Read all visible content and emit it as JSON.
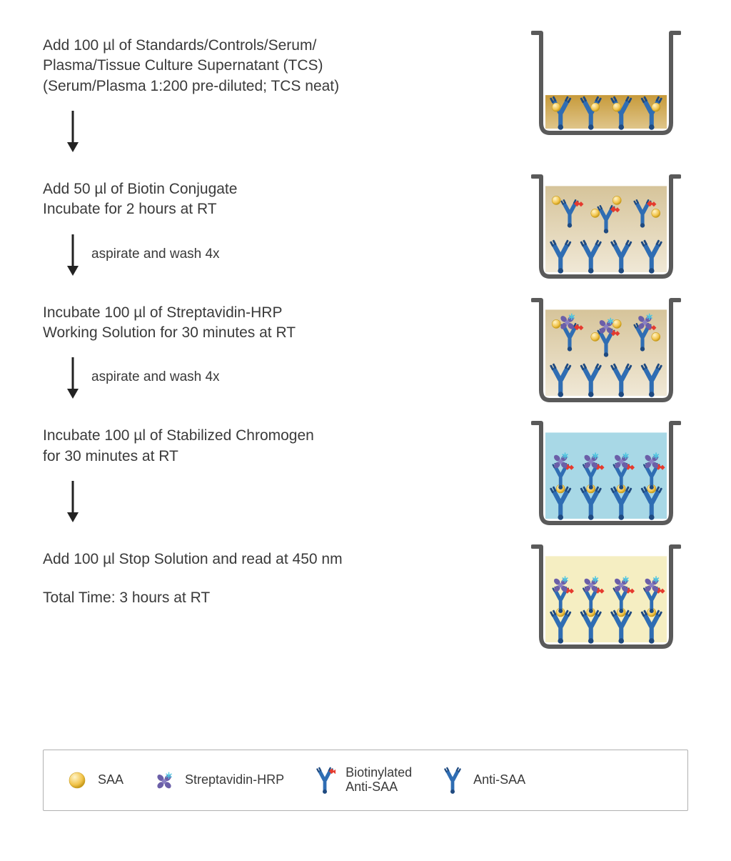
{
  "colors": {
    "text": "#3a3a3a",
    "arrow": "#222222",
    "well_border": "#5a5a5a",
    "saa_fill": "#f2c44b",
    "saa_stroke": "#c79a1a",
    "antibody_blue": "#2f6db3",
    "antibody_blue_dark": "#1f4a80",
    "biotin_red": "#e53a2e",
    "strep_purple": "#6b5fa8",
    "strep_cyan": "#4fc6e0",
    "legend_border": "#b0b0b0"
  },
  "steps": [
    {
      "text": "Add 100 µl of Standards/Controls/Serum/\nPlasma/Tissue Culture Supernatant (TCS)\n(Serum/Plasma 1:200 pre-diluted; TCS neat)",
      "well": {
        "fill_type": "gradient",
        "fill_from": "#c79a3a",
        "fill_to": "#dfc58a",
        "fill_level": 0.35,
        "bottom_antibodies": 4,
        "show_saa_floating": true,
        "show_biotin_ab": false,
        "show_complex": false
      },
      "arrow_after": {
        "label": ""
      }
    },
    {
      "text": "Add 50 µl of Biotin Conjugate\nIncubate for 2 hours at RT",
      "well": {
        "fill_type": "gradient",
        "fill_from": "#d6c49a",
        "fill_to": "#f0e8d6",
        "fill_level": 0.9,
        "bottom_antibodies": 4,
        "show_saa_floating": true,
        "show_biotin_ab": true,
        "show_complex": false
      },
      "arrow_after": {
        "label": "aspirate and wash 4x"
      }
    },
    {
      "text": "Incubate 100 µl of Streptavidin-HRP\nWorking Solution for 30 minutes at RT",
      "well": {
        "fill_type": "gradient",
        "fill_from": "#d6c49a",
        "fill_to": "#f0e8d6",
        "fill_level": 0.9,
        "bottom_antibodies": 4,
        "show_saa_floating": true,
        "show_biotin_ab": true,
        "show_strep_floating": true,
        "show_complex": false
      },
      "arrow_after": {
        "label": "aspirate and wash 4x"
      }
    },
    {
      "text": "Incubate 100 µl of Stabilized Chromogen\nfor 30 minutes at RT",
      "well": {
        "fill_type": "flat",
        "fill_color": "#a8d8e6",
        "fill_level": 0.9,
        "bottom_antibodies": 4,
        "show_complex": true
      },
      "arrow_after": {
        "label": ""
      }
    },
    {
      "text": "Add 100 µl Stop Solution and read at 450 nm",
      "well": {
        "fill_type": "flat",
        "fill_color": "#f5eec2",
        "fill_level": 0.9,
        "bottom_antibodies": 4,
        "show_complex": true
      },
      "arrow_after": null
    }
  ],
  "total_time": "Total Time: 3 hours at RT",
  "legend": {
    "saa": "SAA",
    "strep": "Streptavidin-HRP",
    "biotin": "Biotinylated\nAnti-SAA",
    "anti": "Anti-SAA"
  }
}
